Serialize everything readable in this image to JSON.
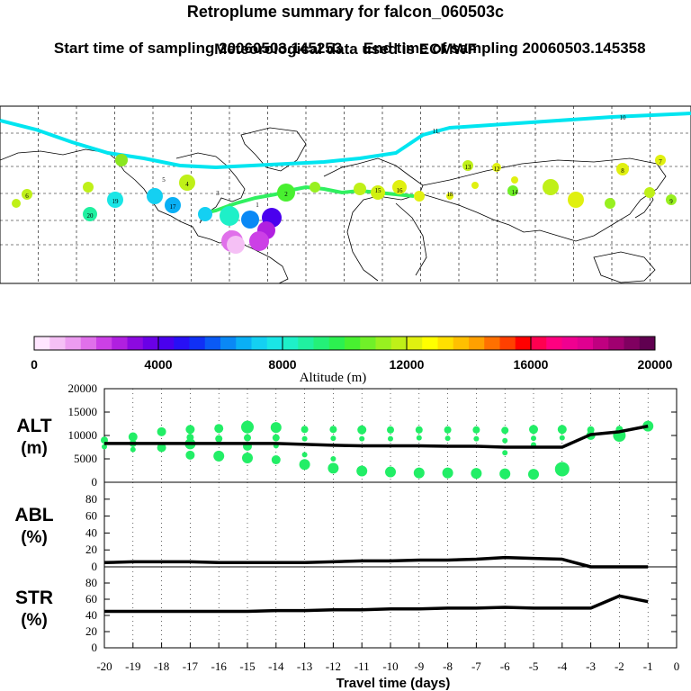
{
  "header": {
    "title": "Retroplume summary for falcon_060503c",
    "start_label": "Start time of sampling 20060503.145253",
    "end_label": "End time of sampling 20060503.145358",
    "met_line": "Meteorological data used is ECMWF"
  },
  "map": {
    "path_labels": [
      "10",
      "11",
      "8",
      "13",
      "12",
      "7",
      "9",
      "6",
      "5",
      "17",
      "19",
      "20",
      "2",
      "3",
      "4",
      "14",
      "15",
      "16",
      "18",
      "1"
    ],
    "plume_color": "#00e5f0"
  },
  "colorbar": {
    "title": "Altitude (m)",
    "tick_labels": [
      "0",
      "4000",
      "8000",
      "12000",
      "16000",
      "20000"
    ],
    "colors": [
      "#ffe6ff",
      "#f5c0f5",
      "#ec9cf0",
      "#e070ea",
      "#cc40e6",
      "#b020e0",
      "#8c0ae0",
      "#6a00e6",
      "#4a00ee",
      "#2810f5",
      "#1030f5",
      "#0a5af5",
      "#0a88f5",
      "#0ab0f5",
      "#14d0f2",
      "#1ae6e6",
      "#1ef0c8",
      "#20f0a0",
      "#24f078",
      "#2cf050",
      "#48f030",
      "#70f028",
      "#98f020",
      "#bff018",
      "#e0f010",
      "#ffff00",
      "#ffe000",
      "#ffc000",
      "#ffa000",
      "#ff7000",
      "#ff4000",
      "#ff0000",
      "#ff0050",
      "#ff0080",
      "#f00090",
      "#e00090",
      "#c00080",
      "#a00070",
      "#800060",
      "#600050"
    ]
  },
  "chart_data": [
    {
      "type": "line",
      "name": "ALT",
      "ylabel": "ALT\n(m)",
      "ylabel_lines": [
        "ALT",
        "(m)"
      ],
      "ylim": [
        0,
        20000
      ],
      "yticks": [
        0,
        5000,
        10000,
        15000,
        20000
      ],
      "tick_labels": [
        "0",
        "5000",
        "10000",
        "15000",
        "20000"
      ],
      "x": [
        -20,
        -19,
        -18,
        -17,
        -16,
        -15,
        -14,
        -13,
        -12,
        -11,
        -10,
        -9,
        -8,
        -7,
        -6,
        -5,
        -4,
        -3,
        -2,
        -1
      ],
      "values": [
        8300,
        8300,
        8300,
        8300,
        8300,
        8300,
        8300,
        8100,
        7900,
        7800,
        7800,
        7800,
        7700,
        7700,
        7500,
        7500,
        7500,
        10200,
        10800,
        12000
      ],
      "scatter": [
        {
          "x": -20,
          "y": 9000,
          "r": 4
        },
        {
          "x": -20,
          "y": 7600,
          "r": 3
        },
        {
          "x": -19,
          "y": 9700,
          "r": 5
        },
        {
          "x": -19,
          "y": 8300,
          "r": 4
        },
        {
          "x": -19,
          "y": 7000,
          "r": 3
        },
        {
          "x": -18,
          "y": 10800,
          "r": 5
        },
        {
          "x": -18,
          "y": 7400,
          "r": 5
        },
        {
          "x": -17,
          "y": 11300,
          "r": 5
        },
        {
          "x": -17,
          "y": 9600,
          "r": 4
        },
        {
          "x": -17,
          "y": 8200,
          "r": 6
        },
        {
          "x": -17,
          "y": 5800,
          "r": 5
        },
        {
          "x": -16,
          "y": 11500,
          "r": 5
        },
        {
          "x": -16,
          "y": 9300,
          "r": 4
        },
        {
          "x": -16,
          "y": 5600,
          "r": 6
        },
        {
          "x": -15,
          "y": 11800,
          "r": 7
        },
        {
          "x": -15,
          "y": 9500,
          "r": 4
        },
        {
          "x": -15,
          "y": 7700,
          "r": 5
        },
        {
          "x": -15,
          "y": 5200,
          "r": 6
        },
        {
          "x": -14,
          "y": 11700,
          "r": 6
        },
        {
          "x": -14,
          "y": 9500,
          "r": 4
        },
        {
          "x": -14,
          "y": 7800,
          "r": 3
        },
        {
          "x": -14,
          "y": 4800,
          "r": 5
        },
        {
          "x": -13,
          "y": 11300,
          "r": 4
        },
        {
          "x": -13,
          "y": 9300,
          "r": 3
        },
        {
          "x": -13,
          "y": 5900,
          "r": 3
        },
        {
          "x": -13,
          "y": 3800,
          "r": 6
        },
        {
          "x": -12,
          "y": 11300,
          "r": 4
        },
        {
          "x": -12,
          "y": 9400,
          "r": 3
        },
        {
          "x": -12,
          "y": 5000,
          "r": 3
        },
        {
          "x": -12,
          "y": 3000,
          "r": 6
        },
        {
          "x": -11,
          "y": 11200,
          "r": 5
        },
        {
          "x": -11,
          "y": 9300,
          "r": 3
        },
        {
          "x": -11,
          "y": 2400,
          "r": 6
        },
        {
          "x": -10,
          "y": 11200,
          "r": 4
        },
        {
          "x": -10,
          "y": 9300,
          "r": 3
        },
        {
          "x": -10,
          "y": 2200,
          "r": 6
        },
        {
          "x": -9,
          "y": 11200,
          "r": 4
        },
        {
          "x": -9,
          "y": 9500,
          "r": 3
        },
        {
          "x": -9,
          "y": 2000,
          "r": 6
        },
        {
          "x": -8,
          "y": 11200,
          "r": 4
        },
        {
          "x": -8,
          "y": 9400,
          "r": 3
        },
        {
          "x": -8,
          "y": 2000,
          "r": 6
        },
        {
          "x": -7,
          "y": 11200,
          "r": 4
        },
        {
          "x": -7,
          "y": 9300,
          "r": 3
        },
        {
          "x": -7,
          "y": 1900,
          "r": 6
        },
        {
          "x": -6,
          "y": 11100,
          "r": 4
        },
        {
          "x": -6,
          "y": 8900,
          "r": 3
        },
        {
          "x": -6,
          "y": 6300,
          "r": 3
        },
        {
          "x": -6,
          "y": 1800,
          "r": 6
        },
        {
          "x": -5,
          "y": 11300,
          "r": 5
        },
        {
          "x": -5,
          "y": 9400,
          "r": 3
        },
        {
          "x": -5,
          "y": 8000,
          "r": 3
        },
        {
          "x": -5,
          "y": 1700,
          "r": 6
        },
        {
          "x": -4,
          "y": 11300,
          "r": 5
        },
        {
          "x": -4,
          "y": 9500,
          "r": 3
        },
        {
          "x": -4,
          "y": 2800,
          "r": 8
        },
        {
          "x": -3,
          "y": 11200,
          "r": 4
        },
        {
          "x": -3,
          "y": 10000,
          "r": 5
        },
        {
          "x": -2,
          "y": 11300,
          "r": 4
        },
        {
          "x": -2,
          "y": 10000,
          "r": 7
        },
        {
          "x": -1,
          "y": 12000,
          "r": 6
        }
      ],
      "scatter_color": "#22ee66"
    },
    {
      "type": "line",
      "name": "ABL",
      "ylabel": "ABL\n(%)",
      "ylabel_lines": [
        "ABL",
        "(%)"
      ],
      "ylim": [
        0,
        100
      ],
      "yticks": [
        0,
        20,
        40,
        60,
        80
      ],
      "tick_labels": [
        "0",
        "20",
        "40",
        "60",
        "80"
      ],
      "x": [
        -20,
        -19,
        -18,
        -17,
        -16,
        -15,
        -14,
        -13,
        -12,
        -11,
        -10,
        -9,
        -8,
        -7,
        -6,
        -5,
        -4,
        -3,
        -2,
        -1
      ],
      "values": [
        5,
        6,
        6,
        6,
        5,
        5,
        5,
        5,
        6,
        7,
        7,
        8,
        8,
        9,
        11,
        10,
        9,
        0,
        0,
        0
      ]
    },
    {
      "type": "line",
      "name": "STR",
      "ylabel": "STR\n(%)",
      "ylabel_lines": [
        "STR",
        "(%)"
      ],
      "ylim": [
        0,
        100
      ],
      "yticks": [
        0,
        20,
        40,
        60,
        80
      ],
      "tick_labels": [
        "0",
        "20",
        "40",
        "60",
        "80"
      ],
      "x": [
        -20,
        -19,
        -18,
        -17,
        -16,
        -15,
        -14,
        -13,
        -12,
        -11,
        -10,
        -9,
        -8,
        -7,
        -6,
        -5,
        -4,
        -3,
        -2,
        -1
      ],
      "values": [
        45,
        45,
        45,
        45,
        45,
        45,
        46,
        46,
        47,
        47,
        48,
        48,
        49,
        49,
        50,
        49,
        49,
        49,
        64,
        57
      ]
    }
  ],
  "xaxis": {
    "title": "Travel time (days)",
    "xlim": [
      -20,
      0
    ],
    "tick_labels": [
      "-20",
      "-19",
      "-18",
      "-17",
      "-16",
      "-15",
      "-14",
      "-13",
      "-12",
      "-11",
      "-10",
      "-9",
      "-8",
      "-7",
      "-6",
      "-5",
      "-4",
      "-3",
      "-2",
      "-1",
      "0"
    ]
  }
}
